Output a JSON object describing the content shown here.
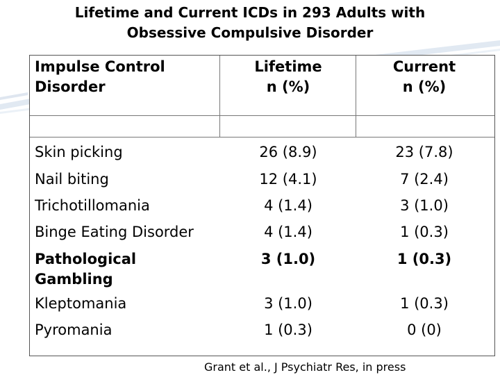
{
  "title": {
    "line1": "Lifetime and Current ICDs in 293 Adults with",
    "line2": "Obsessive Compulsive Disorder"
  },
  "table": {
    "headers": {
      "disorder": [
        "Impulse Control",
        "Disorder"
      ],
      "lifetime": [
        "Lifetime",
        "n (%)"
      ],
      "current": [
        "Current",
        "n (%)"
      ]
    },
    "rows": [
      {
        "name": "Skin picking",
        "lifetime": "26 (8.9)",
        "current": "23 (7.8)",
        "bold": false
      },
      {
        "name": "Nail biting",
        "lifetime": "12 (4.1)",
        "current": "7 (2.4)",
        "bold": false
      },
      {
        "name": "Trichotillomania",
        "lifetime": "4 (1.4)",
        "current": "3 (1.0)",
        "bold": false
      },
      {
        "name": "Binge Eating Disorder",
        "lifetime": "4 (1.4)",
        "current": "1 (0.3)",
        "bold": false
      },
      {
        "name": "Pathological Gambling",
        "name_lines": [
          "Pathological",
          "Gambling"
        ],
        "lifetime": "3 (1.0)",
        "current": "1 (0.3)",
        "bold": true
      },
      {
        "name": "Kleptomania",
        "lifetime": "3 (1.0)",
        "current": "1 (0.3)",
        "bold": false
      },
      {
        "name": "Pyromania",
        "lifetime": "1 (0.3)",
        "current": "0 (0)",
        "bold": false
      }
    ]
  },
  "source": "Grant et al., J Psychiatr Res, in press"
}
